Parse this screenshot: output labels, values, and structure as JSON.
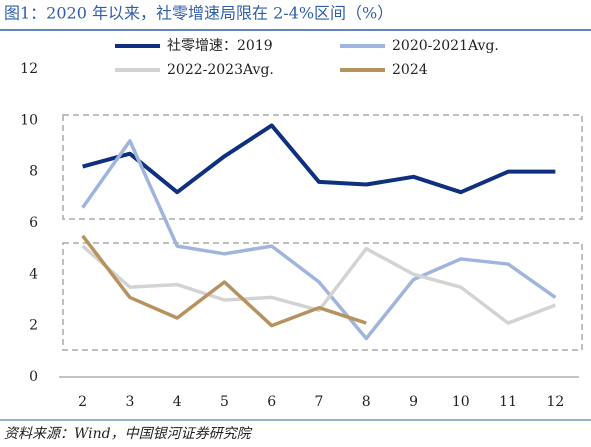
{
  "chart_data": {
    "type": "line",
    "title": "图1：2020 年以来，社零增速局限在 2-4%区间（%）",
    "source": "资料来源：Wind，中国银河证券研究院",
    "categories": [
      "2",
      "3",
      "4",
      "5",
      "6",
      "7",
      "8",
      "9",
      "10",
      "11",
      "12"
    ],
    "series": [
      {
        "name": "社零增速：2019",
        "color": "#0f2f7f",
        "values": [
          8.2,
          8.7,
          7.2,
          8.6,
          9.8,
          7.6,
          7.5,
          7.8,
          7.2,
          8.0,
          8.0
        ]
      },
      {
        "name": "2020-2021Avg.",
        "color": "#9fb5de",
        "values": [
          6.6,
          9.2,
          5.1,
          4.8,
          5.1,
          3.7,
          1.5,
          3.8,
          4.6,
          4.4,
          3.1
        ]
      },
      {
        "name": "2022-2023Avg.",
        "color": "#d3d3d3",
        "values": [
          5.1,
          3.5,
          3.6,
          3.0,
          3.1,
          2.6,
          5.0,
          4.0,
          3.5,
          2.1,
          2.8
        ]
      },
      {
        "name": "2024",
        "color": "#b8925e",
        "values": [
          5.5,
          3.1,
          2.3,
          3.7,
          2.0,
          2.7,
          2.1,
          null,
          null,
          null,
          null
        ]
      }
    ],
    "ylim": [
      0,
      12
    ],
    "yticks": [
      0,
      2,
      4,
      6,
      8,
      10,
      12
    ],
    "grid": false
  }
}
